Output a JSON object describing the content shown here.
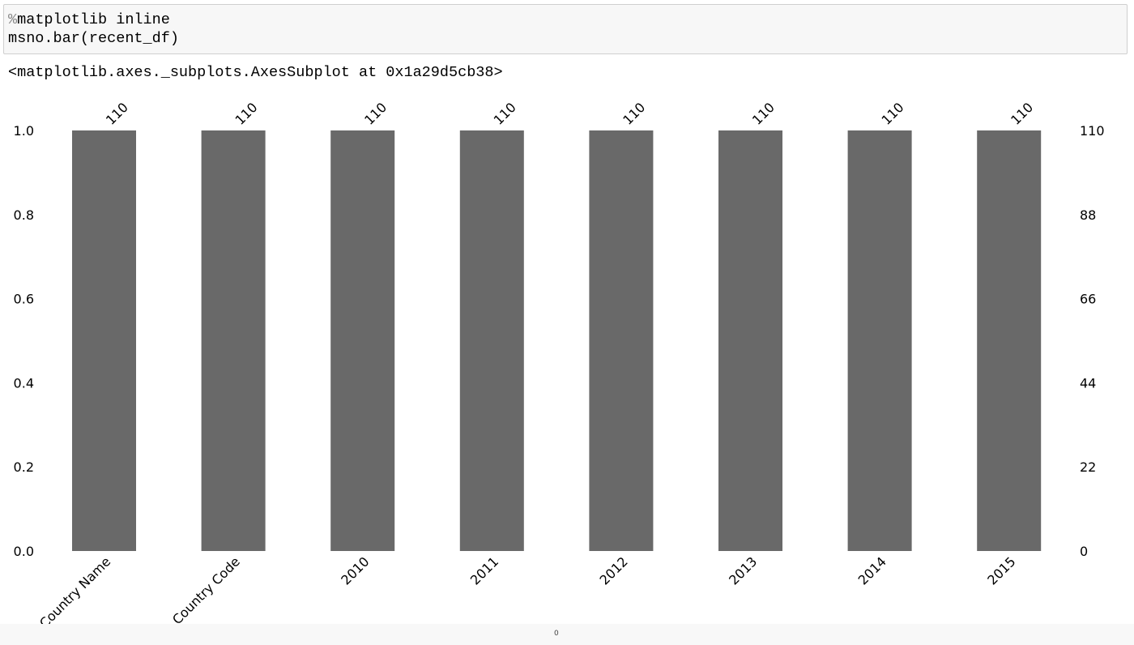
{
  "cell": {
    "magic_symbol": "%",
    "code_line1_rest": "matplotlib inline",
    "code_line2": "msno.bar(recent_df)"
  },
  "output": {
    "text": "<matplotlib.axes._subplots.AxesSubplot at 0x1a29d5cb38>"
  },
  "footer": {
    "text": "0"
  },
  "chart_data": {
    "type": "bar",
    "categories": [
      "Country Name",
      "Country Code",
      "2010",
      "2011",
      "2012",
      "2013",
      "2014",
      "2015"
    ],
    "values": [
      1.0,
      1.0,
      1.0,
      1.0,
      1.0,
      1.0,
      1.0,
      1.0
    ],
    "counts": [
      "110",
      "110",
      "110",
      "110",
      "110",
      "110",
      "110",
      "110"
    ],
    "ylim": [
      0,
      1
    ],
    "left_ticks": [
      "0.0",
      "0.2",
      "0.4",
      "0.6",
      "0.8",
      "1.0"
    ],
    "right_ticks": [
      "0",
      "22",
      "44",
      "66",
      "88",
      "110"
    ],
    "bar_color": "#696969",
    "grid": false
  }
}
